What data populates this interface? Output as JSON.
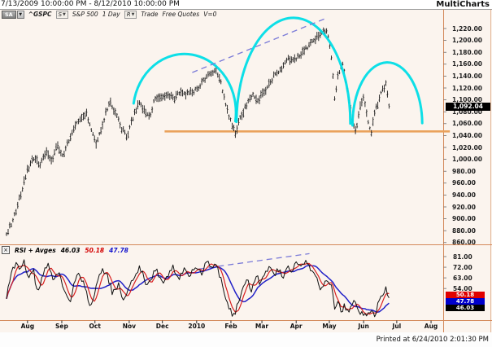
{
  "window": {
    "title_range": "7/13/2009 10:00:00 PM - 8/12/2010 10:00:00 PM",
    "brand": "MultiCharts",
    "printed_at": "Printed at 6/24/2010 2:01:30 PM"
  },
  "toolbar": {
    "sa_label": "SA",
    "glyph_down": "▼",
    "symbol": "^GSPC",
    "s_button": "S",
    "series_name": "S&P 500",
    "resolution": "1 Day",
    "r_button": "R",
    "trade_label": "Trade",
    "quotes_label": "Free Quotes",
    "volume_label": "V=0"
  },
  "price_axis": {
    "labels": [
      "1,220.00",
      "1,200.00",
      "1,180.00",
      "1,160.00",
      "1,140.00",
      "1,120.00",
      "1,100.00",
      "1,080.00",
      "1,060.00",
      "1,040.00",
      "1,020.00",
      "1,000.00",
      "980.00",
      "960.00",
      "940.00",
      "920.00",
      "900.00",
      "880.00",
      "860.00"
    ],
    "last_price_label": "1,092.04"
  },
  "time_axis": {
    "labels": [
      "Aug",
      "Sep",
      "Oct",
      "Nov",
      "Dec",
      "2010",
      "Feb",
      "Mar",
      "Apr",
      "May",
      "Jun",
      "Jul",
      "Aug"
    ],
    "label_day_offsets": [
      19,
      50,
      80,
      111,
      141,
      172,
      203,
      231,
      262,
      292,
      323,
      353,
      384
    ]
  },
  "rsi_panel": {
    "close_glyph": "×",
    "title": "RSI + Avges",
    "value_rsi": "46.03",
    "value_avg_fast": "50.18",
    "value_avg_slow": "47.78",
    "axis_labels": [
      "81.00",
      "72.00",
      "63.00",
      "54.00"
    ],
    "axis_values": [
      81,
      72,
      63,
      54
    ]
  },
  "colors": {
    "background": "#fbf4ee",
    "arc_cyan": "#00dde6",
    "neckline_orange": "#eaa25c",
    "trendline_violet": "#7b7bd8",
    "panel_border": "#d4895a",
    "top_border": "#9a9a9a",
    "bars_black": "#1a1a1a",
    "rsi_black": "#111111",
    "rsi_red": "#d81f1f",
    "rsi_blue": "#2020c8"
  },
  "chart_data": {
    "type": "bar",
    "subtype": "ohlc-daily-bars",
    "symbol": "^GSPC",
    "title": "S&P 500 1 Day",
    "date_range": [
      "7/13/2009 10:00:00 PM",
      "8/12/2010 10:00:00 PM"
    ],
    "ylim": [
      860,
      1220
    ],
    "last_price": 1092.04,
    "price_path_day_price": [
      [
        0,
        876
      ],
      [
        6,
        898
      ],
      [
        12,
        935
      ],
      [
        19,
        982
      ],
      [
        25,
        1004
      ],
      [
        30,
        990
      ],
      [
        36,
        1013
      ],
      [
        41,
        997
      ],
      [
        46,
        1024
      ],
      [
        51,
        1005
      ],
      [
        56,
        1030
      ],
      [
        62,
        1054
      ],
      [
        66,
        1069
      ],
      [
        72,
        1078
      ],
      [
        81,
        1027
      ],
      [
        87,
        1060
      ],
      [
        93,
        1097
      ],
      [
        99,
        1078
      ],
      [
        104,
        1052
      ],
      [
        109,
        1038
      ],
      [
        114,
        1068
      ],
      [
        119,
        1094
      ],
      [
        124,
        1086
      ],
      [
        129,
        1070
      ],
      [
        134,
        1100
      ],
      [
        141,
        1106
      ],
      [
        146,
        1110
      ],
      [
        151,
        1102
      ],
      [
        157,
        1112
      ],
      [
        163,
        1110
      ],
      [
        169,
        1114
      ],
      [
        174,
        1120
      ],
      [
        180,
        1138
      ],
      [
        186,
        1146
      ],
      [
        190,
        1150
      ],
      [
        194,
        1128
      ],
      [
        198,
        1092
      ],
      [
        203,
        1062
      ],
      [
        207,
        1045
      ],
      [
        212,
        1072
      ],
      [
        218,
        1096
      ],
      [
        224,
        1108
      ],
      [
        228,
        1100
      ],
      [
        232,
        1112
      ],
      [
        236,
        1120
      ],
      [
        242,
        1140
      ],
      [
        248,
        1152
      ],
      [
        255,
        1170
      ],
      [
        260,
        1168
      ],
      [
        266,
        1178
      ],
      [
        272,
        1188
      ],
      [
        278,
        1200
      ],
      [
        284,
        1210
      ],
      [
        288,
        1217
      ],
      [
        291,
        1208
      ],
      [
        294,
        1170
      ],
      [
        297,
        1095
      ],
      [
        300,
        1145
      ],
      [
        304,
        1158
      ],
      [
        308,
        1120
      ],
      [
        312,
        1075
      ],
      [
        316,
        1045
      ],
      [
        320,
        1090
      ],
      [
        323,
        1103
      ],
      [
        326,
        1072
      ],
      [
        330,
        1044
      ],
      [
        333,
        1078
      ],
      [
        336,
        1095
      ],
      [
        340,
        1118
      ],
      [
        343,
        1126
      ],
      [
        346,
        1092
      ]
    ],
    "rsi_path_day_value": [
      [
        0,
        46
      ],
      [
        4,
        64
      ],
      [
        8,
        76
      ],
      [
        12,
        70
      ],
      [
        16,
        78
      ],
      [
        20,
        62
      ],
      [
        24,
        70
      ],
      [
        28,
        52
      ],
      [
        33,
        66
      ],
      [
        38,
        74
      ],
      [
        43,
        60
      ],
      [
        48,
        68
      ],
      [
        53,
        48
      ],
      [
        58,
        44
      ],
      [
        62,
        60
      ],
      [
        66,
        68
      ],
      [
        71,
        54
      ],
      [
        76,
        39
      ],
      [
        81,
        54
      ],
      [
        86,
        70
      ],
      [
        91,
        64
      ],
      [
        96,
        50
      ],
      [
        101,
        58
      ],
      [
        106,
        43
      ],
      [
        111,
        56
      ],
      [
        116,
        66
      ],
      [
        121,
        72
      ],
      [
        126,
        58
      ],
      [
        131,
        64
      ],
      [
        136,
        70
      ],
      [
        141,
        58
      ],
      [
        146,
        66
      ],
      [
        151,
        72
      ],
      [
        156,
        62
      ],
      [
        161,
        70
      ],
      [
        166,
        64
      ],
      [
        171,
        72
      ],
      [
        176,
        66
      ],
      [
        181,
        76
      ],
      [
        186,
        70
      ],
      [
        190,
        74
      ],
      [
        194,
        62
      ],
      [
        198,
        48
      ],
      [
        202,
        36
      ],
      [
        206,
        31
      ],
      [
        210,
        44
      ],
      [
        214,
        56
      ],
      [
        218,
        62
      ],
      [
        222,
        52
      ],
      [
        226,
        64
      ],
      [
        230,
        58
      ],
      [
        234,
        68
      ],
      [
        238,
        73
      ],
      [
        242,
        64
      ],
      [
        246,
        70
      ],
      [
        250,
        63
      ],
      [
        254,
        73
      ],
      [
        258,
        67
      ],
      [
        262,
        76
      ],
      [
        266,
        70
      ],
      [
        270,
        79
      ],
      [
        274,
        73
      ],
      [
        278,
        67
      ],
      [
        282,
        58
      ],
      [
        286,
        52
      ],
      [
        290,
        64
      ],
      [
        294,
        55
      ],
      [
        297,
        34
      ],
      [
        300,
        46
      ],
      [
        303,
        30
      ],
      [
        306,
        40
      ],
      [
        310,
        34
      ],
      [
        314,
        45
      ],
      [
        318,
        37
      ],
      [
        322,
        32
      ],
      [
        326,
        29
      ],
      [
        330,
        37
      ],
      [
        333,
        31
      ],
      [
        336,
        41
      ],
      [
        340,
        50
      ],
      [
        343,
        54
      ],
      [
        346,
        47
      ]
    ],
    "rsi_last_values": {
      "rsi": 46.03,
      "avg_fast": 50.18,
      "avg_slow": 47.78
    },
    "annotations": {
      "head_and_shoulders_arcs": [
        {
          "start_day": 115,
          "start_price": 1094,
          "end_day": 207,
          "end_price": 1064,
          "peak_price": 1176
        },
        {
          "start_day": 208,
          "start_price": 1063,
          "end_day": 311,
          "end_price": 1060,
          "peak_price": 1238
        },
        {
          "start_day": 313,
          "start_price": 1057,
          "end_day": 376,
          "end_price": 1061,
          "peak_price": 1163
        }
      ],
      "neckline": {
        "from_day": 143,
        "to_day": 401,
        "price": 1047
      },
      "price_trendline_dashed": {
        "from": [
          168,
          1146
        ],
        "to": [
          290,
          1238
        ]
      },
      "rsi_trendline_dashed": {
        "from": [
          174,
          70.5
        ],
        "to": [
          274,
          83.5
        ]
      }
    }
  }
}
